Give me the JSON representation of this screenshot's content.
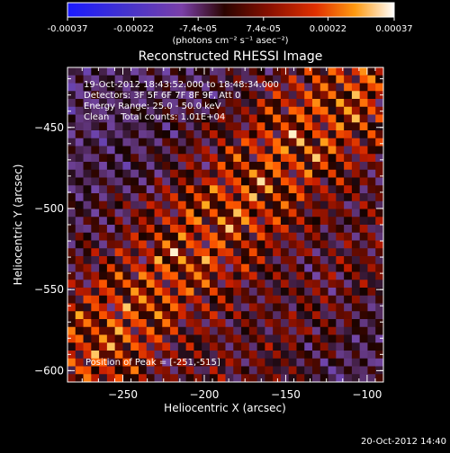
{
  "colorbar": {
    "tick_labels": [
      "-0.00037",
      "-0.00022",
      "-7.4e-05",
      "7.4e-05",
      "0.00022",
      "0.00037"
    ],
    "unit_label": "(photons cm⁻² s⁻¹ asec⁻²)",
    "range": [
      -0.00037,
      0.00037
    ]
  },
  "chart_data": {
    "type": "heatmap",
    "title": "Reconstructed RHESSI Image",
    "xlabel": "Heliocentric X (arcsec)",
    "ylabel": "Heliocentric Y (arcsec)",
    "xlim": [
      -284,
      -90
    ],
    "ylim": [
      -607,
      -413
    ],
    "x_ticks": [
      -250,
      -200,
      -150,
      -100
    ],
    "y_ticks": [
      -450,
      -500,
      -550,
      -600
    ],
    "grid": false,
    "pattern": "diagonal fringe pattern of bright emission bands running from lower-left to upper-right, brightest near (-251, -515)",
    "annotations": [
      "19-Oct-2012 18:43:52.000 to 18:48:34.000",
      "Detectors: 3F 5F 6F 7F 8F 9F, Att 0",
      "Energy Range: 25.0 - 50.0 keV",
      "Clean    Total counts: 1.01E+04"
    ],
    "peak_label": "Position of Peak = [-251,-515]",
    "peak": [
      -251,
      -515
    ]
  },
  "footer": {
    "timestamp": "20-Oct-2012 14:40"
  }
}
